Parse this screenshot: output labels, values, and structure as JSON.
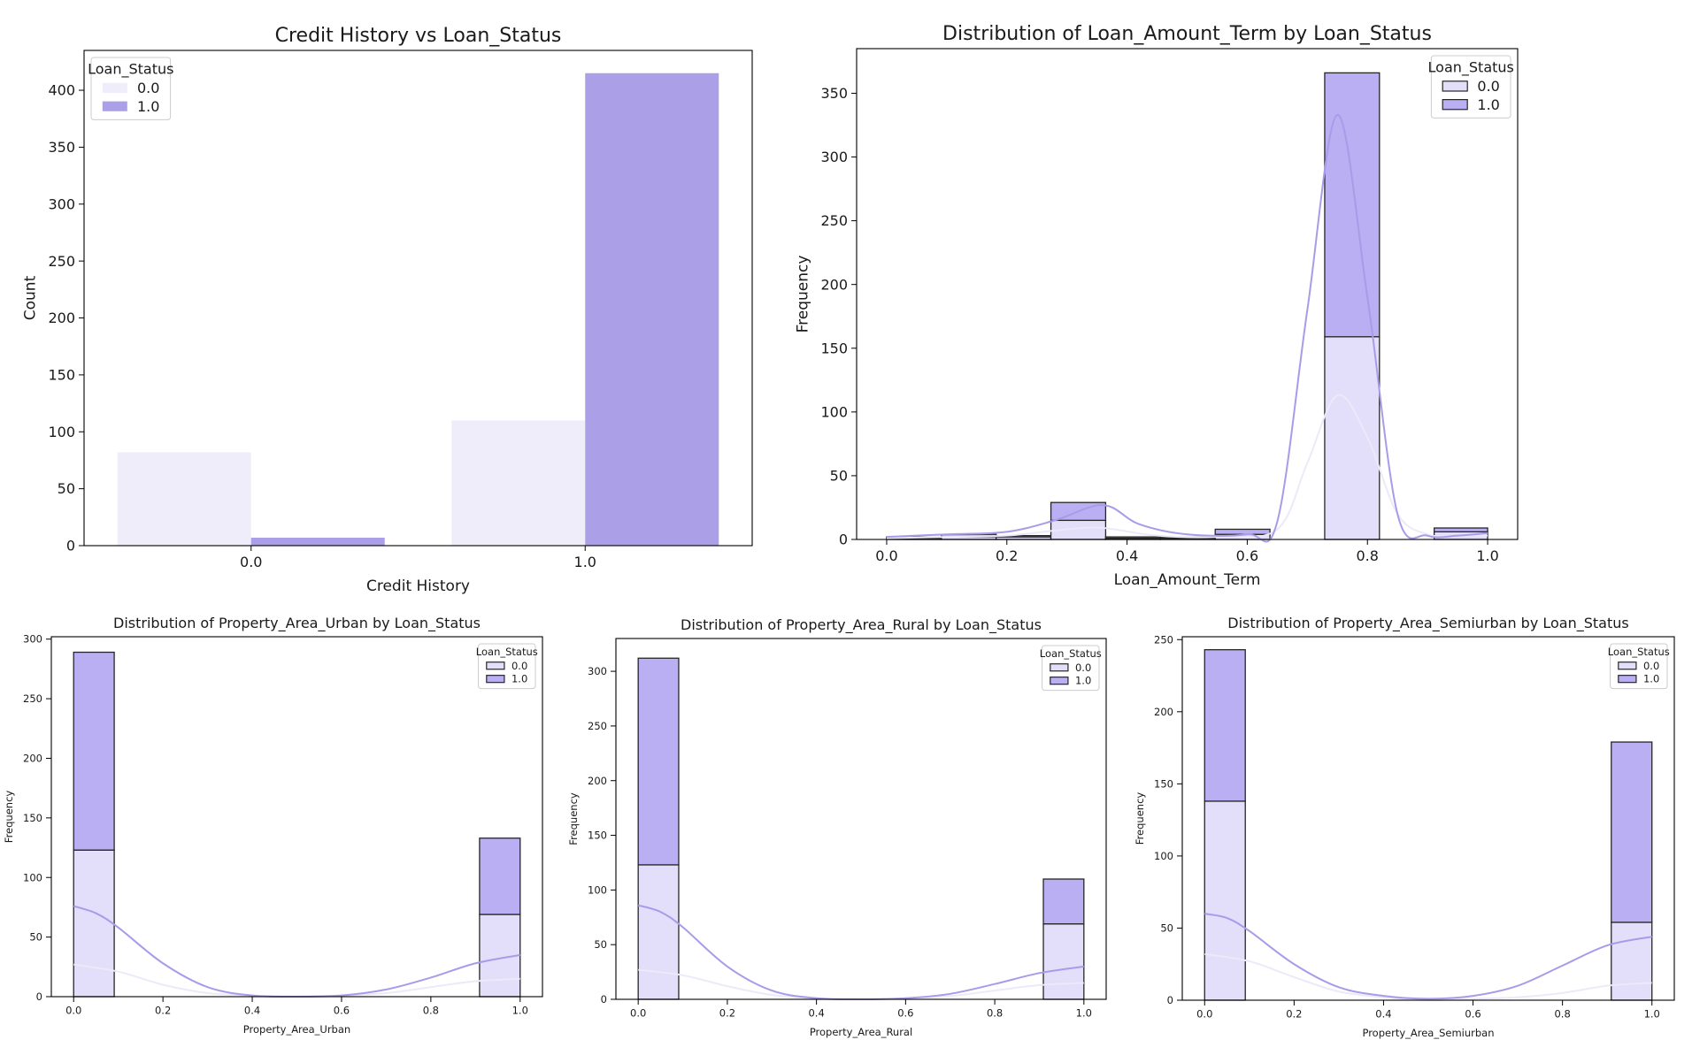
{
  "colors": {
    "status0_fill": "#f0edfb",
    "status1_fill": "#aba0e8",
    "hist0_fill": "#e3dffa",
    "hist1_fill": "#b9aff2",
    "kde0": "#ece9f9",
    "kde1": "#a89be9",
    "edge": "#262626"
  },
  "chart_data": [
    {
      "id": "credit",
      "type": "bar",
      "title": "Credit History vs Loan_Status",
      "xlabel": "Credit History",
      "ylabel": "Count",
      "categories": [
        "0.0",
        "1.0"
      ],
      "series": [
        {
          "name": "0.0",
          "values": [
            82,
            110
          ]
        },
        {
          "name": "1.0",
          "values": [
            7,
            415
          ]
        }
      ],
      "ylim": [
        0,
        435
      ],
      "yticks": [
        0,
        50,
        100,
        150,
        200,
        250,
        300,
        350,
        400
      ],
      "legend": {
        "title": "Loan_Status",
        "placement": "top-left"
      }
    },
    {
      "id": "term",
      "type": "histogram",
      "title": "Distribution of Loan_Amount_Term by Loan_Status",
      "xlabel": "Loan_Amount_Term",
      "ylabel": "Frequency",
      "multiple": "stack",
      "xlim": [
        -0.05,
        1.05
      ],
      "ylim": [
        0,
        385
      ],
      "xticks": [
        0.0,
        0.2,
        0.4,
        0.6,
        0.8,
        1.0
      ],
      "yticks": [
        0,
        50,
        100,
        150,
        200,
        250,
        300,
        350
      ],
      "bin_edges": [
        0.0,
        0.0911,
        0.1822,
        0.2733,
        0.3644,
        0.4556,
        0.5467,
        0.6378,
        0.7289,
        0.82,
        0.9111,
        1.0
      ],
      "series": [
        {
          "name": "0.0",
          "values": [
            1,
            2,
            2,
            15,
            1,
            1,
            4,
            0,
            159,
            0,
            6
          ]
        },
        {
          "name": "1.0",
          "values": [
            1,
            2,
            1,
            14,
            1,
            1,
            4,
            0,
            207,
            0,
            3
          ]
        }
      ],
      "kde": [
        {
          "name": "0.0",
          "x": [
            0.0,
            0.1,
            0.2,
            0.3,
            0.36,
            0.45,
            0.55,
            0.65,
            0.7,
            0.75,
            0.8,
            0.85,
            0.9,
            0.95,
            1.0
          ],
          "y": [
            1,
            2,
            3,
            8,
            9,
            3,
            2,
            8,
            60,
            113,
            80,
            20,
            4,
            3,
            3
          ]
        },
        {
          "name": "1.0",
          "x": [
            0.0,
            0.1,
            0.2,
            0.28,
            0.36,
            0.42,
            0.5,
            0.6,
            0.65,
            0.7,
            0.75,
            0.8,
            0.85,
            0.9,
            0.95,
            1.0
          ],
          "y": [
            2,
            4,
            6,
            15,
            27,
            12,
            4,
            4,
            14,
            180,
            333,
            190,
            20,
            3,
            3,
            5
          ]
        }
      ],
      "legend": {
        "title": "Loan_Status",
        "placement": "top-right"
      }
    },
    {
      "id": "urban",
      "type": "histogram",
      "title": "Distribution of Property_Area_Urban by Loan_Status",
      "xlabel": "Property_Area_Urban",
      "ylabel": "Frequency",
      "multiple": "stack",
      "xlim": [
        -0.05,
        1.05
      ],
      "ylim": [
        0,
        302
      ],
      "xticks": [
        0.0,
        0.2,
        0.4,
        0.6,
        0.8,
        1.0
      ],
      "yticks": [
        0,
        50,
        100,
        150,
        200,
        250,
        300
      ],
      "bin_edges": [
        0.0,
        0.0909,
        0.9091,
        1.0
      ],
      "series": [
        {
          "name": "0.0",
          "values": [
            123,
            0,
            69
          ]
        },
        {
          "name": "1.0",
          "values": [
            166,
            0,
            64
          ]
        }
      ],
      "kde": [
        {
          "name": "0.0",
          "x": [
            0.0,
            0.1,
            0.2,
            0.3,
            0.4,
            0.5,
            0.6,
            0.7,
            0.8,
            0.9,
            1.0
          ],
          "y": [
            27,
            21,
            10,
            3,
            1,
            0,
            1,
            3,
            8,
            13,
            15
          ]
        },
        {
          "name": "1.0",
          "x": [
            0.0,
            0.05,
            0.1,
            0.2,
            0.3,
            0.4,
            0.5,
            0.6,
            0.7,
            0.8,
            0.9,
            1.0
          ],
          "y": [
            76,
            70,
            58,
            28,
            8,
            1,
            0,
            1,
            6,
            16,
            28,
            35
          ]
        }
      ],
      "legend": {
        "title": "Loan_Status",
        "placement": "top-right"
      }
    },
    {
      "id": "rural",
      "type": "histogram",
      "title": "Distribution of Property_Area_Rural by Loan_Status",
      "xlabel": "Property_Area_Rural",
      "ylabel": "Frequency",
      "multiple": "stack",
      "xlim": [
        -0.05,
        1.05
      ],
      "ylim": [
        0,
        330
      ],
      "xticks": [
        0.0,
        0.2,
        0.4,
        0.6,
        0.8,
        1.0
      ],
      "yticks": [
        0,
        50,
        100,
        150,
        200,
        250,
        300
      ],
      "bin_edges": [
        0.0,
        0.0909,
        0.9091,
        1.0
      ],
      "series": [
        {
          "name": "0.0",
          "values": [
            123,
            0,
            69
          ]
        },
        {
          "name": "1.0",
          "values": [
            189,
            0,
            41
          ]
        }
      ],
      "kde": [
        {
          "name": "0.0",
          "x": [
            0.0,
            0.1,
            0.2,
            0.3,
            0.4,
            0.5,
            0.6,
            0.7,
            0.8,
            0.9,
            1.0
          ],
          "y": [
            27,
            22,
            12,
            4,
            1,
            0,
            1,
            3,
            8,
            13,
            15
          ]
        },
        {
          "name": "1.0",
          "x": [
            0.0,
            0.05,
            0.1,
            0.2,
            0.3,
            0.4,
            0.5,
            0.6,
            0.7,
            0.8,
            0.9,
            1.0
          ],
          "y": [
            86,
            80,
            66,
            30,
            8,
            1,
            0,
            1,
            5,
            14,
            24,
            30
          ]
        }
      ],
      "legend": {
        "title": "Loan_Status",
        "placement": "top-right"
      }
    },
    {
      "id": "semi",
      "type": "histogram",
      "title": "Distribution of Property_Area_Semiurban by Loan_Status",
      "xlabel": "Property_Area_Semiurban",
      "ylabel": "Frequency",
      "multiple": "stack",
      "xlim": [
        -0.05,
        1.05
      ],
      "ylim": [
        0,
        252
      ],
      "xticks": [
        0.0,
        0.2,
        0.4,
        0.6,
        0.8,
        1.0
      ],
      "yticks": [
        0,
        50,
        100,
        150,
        200,
        250
      ],
      "bin_edges": [
        0.0,
        0.0909,
        0.9091,
        1.0
      ],
      "series": [
        {
          "name": "0.0",
          "values": [
            138,
            0,
            54
          ]
        },
        {
          "name": "1.0",
          "values": [
            105,
            0,
            125
          ]
        }
      ],
      "kde": [
        {
          "name": "0.0",
          "x": [
            0.0,
            0.1,
            0.2,
            0.3,
            0.4,
            0.5,
            0.6,
            0.7,
            0.8,
            0.9,
            1.0
          ],
          "y": [
            32,
            27,
            16,
            6,
            2,
            0,
            1,
            2,
            5,
            10,
            12
          ]
        },
        {
          "name": "1.0",
          "x": [
            0.0,
            0.05,
            0.1,
            0.2,
            0.3,
            0.4,
            0.5,
            0.6,
            0.7,
            0.8,
            0.9,
            1.0
          ],
          "y": [
            60,
            57,
            48,
            25,
            9,
            3,
            1,
            3,
            10,
            24,
            38,
            44
          ]
        }
      ],
      "legend": {
        "title": "Loan_Status",
        "placement": "top-right"
      }
    }
  ]
}
